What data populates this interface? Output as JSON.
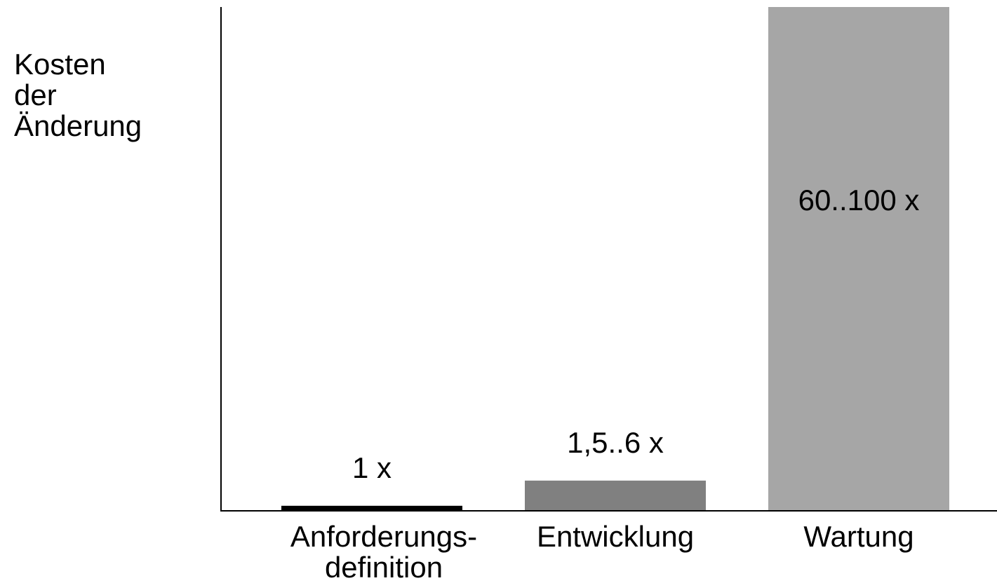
{
  "chart_data": {
    "type": "bar",
    "title": "",
    "ylabel_lines": [
      "Kosten",
      "der",
      "Änderung"
    ],
    "xlabel": "",
    "categories": [
      {
        "lines": [
          "Anforderungs-",
          "definition"
        ]
      },
      {
        "lines": [
          "Entwicklung"
        ]
      },
      {
        "lines": [
          "Wartung"
        ]
      }
    ],
    "values": [
      1,
      6,
      100
    ],
    "data_labels": [
      "1 x",
      "1,5..6 x",
      "60..100 x"
    ],
    "colors": [
      "#000000",
      "#808080",
      "#a6a6a6"
    ],
    "ylim": [
      0,
      100
    ],
    "grid": false,
    "legend": "none"
  }
}
